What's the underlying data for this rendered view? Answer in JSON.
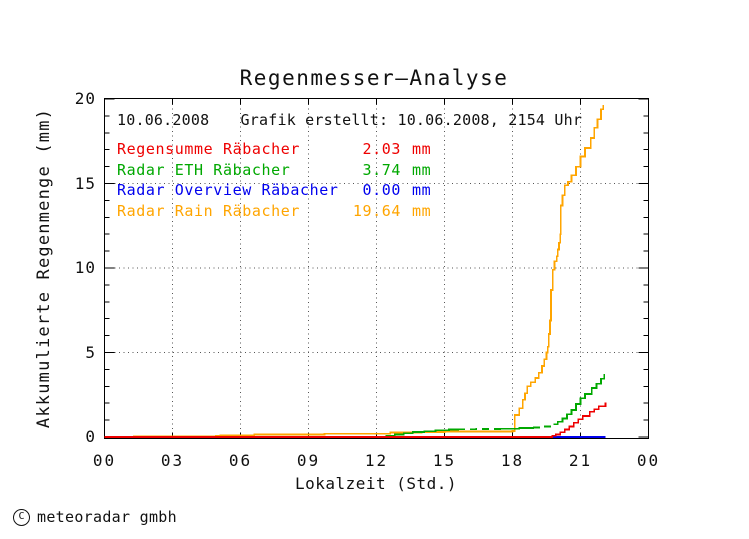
{
  "title": "Regenmesser—Analyse",
  "header": {
    "date": "10.06.2008",
    "created": "Grafik erstellt: 10.06.2008, 2154 Uhr"
  },
  "legend": [
    {
      "name": "Regensumme Räbacher",
      "value": "2.03",
      "unit": "mm",
      "color": "#ee0000"
    },
    {
      "name": "Radar ETH Räbacher",
      "value": "3.74",
      "unit": "mm",
      "color": "#00a800"
    },
    {
      "name": "Radar Overview Räbacher",
      "value": "0.00",
      "unit": "mm",
      "color": "#0000ee"
    },
    {
      "name": "Radar Rain Räbacher",
      "value": "19.64",
      "unit": "mm",
      "color": "#ffa500"
    }
  ],
  "footer": {
    "symbol": "C",
    "text": "meteoradar gmbh"
  },
  "chart_data": {
    "type": "line",
    "title": "Regenmesser—Analyse",
    "xlabel": "Lokalzeit (Std.)",
    "ylabel": "Akkumulierte Regenmenge (mm)",
    "xlim": [
      0,
      24
    ],
    "ylim": [
      0,
      20
    ],
    "x_ticks": {
      "values": [
        0,
        3,
        6,
        9,
        12,
        15,
        18,
        21,
        24
      ],
      "labels": [
        "00",
        "03",
        "06",
        "09",
        "12",
        "15",
        "18",
        "21",
        "00"
      ]
    },
    "y_ticks": {
      "values": [
        0,
        5,
        10,
        15,
        20
      ],
      "labels": [
        "0",
        "5",
        "10",
        "15",
        "20"
      ],
      "minor_step": 1
    },
    "grid": {
      "x_values": [
        3,
        6,
        9,
        12,
        15,
        18,
        21
      ],
      "y_values": [
        5,
        10,
        15
      ],
      "style": "dotted"
    },
    "axis_color": "#000000",
    "grid_color": "#555555",
    "series": [
      {
        "name": "Radar Overview Räbacher",
        "color": "#0000ee",
        "total_mm": 0.0,
        "segments": [
          {
            "dash": false,
            "points": [
              [
                0,
                0
              ],
              [
                22.1,
                0
              ]
            ]
          }
        ]
      },
      {
        "name": "Radar Rain Räbacher",
        "color": "#ffa500",
        "total_mm": 19.64,
        "segments": [
          {
            "dash": false,
            "points": [
              [
                0,
                0
              ],
              [
                1.2,
                0
              ],
              [
                1.3,
                0.05
              ],
              [
                4.9,
                0.07
              ],
              [
                5.1,
                0.1
              ],
              [
                6.6,
                0.15
              ],
              [
                9.7,
                0.2
              ],
              [
                12.6,
                0.27
              ],
              [
                14.0,
                0.3
              ],
              [
                15.0,
                0.33
              ],
              [
                18.0,
                0.36
              ],
              [
                18.1,
                1.3
              ],
              [
                18.3,
                1.7
              ],
              [
                18.45,
                2.2
              ],
              [
                18.55,
                2.6
              ],
              [
                18.65,
                3.0
              ],
              [
                18.8,
                3.25
              ],
              [
                19.0,
                3.5
              ],
              [
                19.15,
                3.8
              ],
              [
                19.3,
                4.2
              ],
              [
                19.4,
                4.6
              ],
              [
                19.5,
                5.0
              ],
              [
                19.55,
                5.35
              ],
              [
                19.6,
                6.1
              ],
              [
                19.65,
                6.9
              ],
              [
                19.7,
                8.7
              ],
              [
                19.78,
                9.9
              ],
              [
                19.85,
                10.4
              ],
              [
                19.95,
                10.7
              ],
              [
                20.0,
                11.1
              ],
              [
                20.05,
                11.5
              ],
              [
                20.1,
                12.0
              ],
              [
                20.13,
                13.7
              ],
              [
                20.2,
                14.3
              ],
              [
                20.3,
                14.9
              ],
              [
                20.45,
                15.1
              ],
              [
                20.6,
                15.5
              ],
              [
                20.8,
                16.0
              ],
              [
                21.0,
                16.6
              ],
              [
                21.2,
                17.1
              ],
              [
                21.45,
                17.7
              ],
              [
                21.6,
                18.3
              ],
              [
                21.75,
                18.8
              ],
              [
                21.9,
                19.4
              ],
              [
                22.0,
                19.64
              ]
            ]
          }
        ]
      },
      {
        "name": "Radar ETH Räbacher",
        "color": "#00a800",
        "total_mm": 3.74,
        "segments": [
          {
            "dash": false,
            "points": [
              [
                12.4,
                0.08
              ],
              [
                12.8,
                0.15
              ],
              [
                13.2,
                0.22
              ],
              [
                13.6,
                0.3
              ],
              [
                14.1,
                0.35
              ],
              [
                14.6,
                0.4
              ],
              [
                15.2,
                0.45
              ],
              [
                15.6,
                0.47
              ]
            ]
          },
          {
            "dash": true,
            "points": [
              [
                15.6,
                0.47
              ],
              [
                16.4,
                0.48
              ],
              [
                17.5,
                0.5
              ]
            ]
          },
          {
            "dash": false,
            "points": [
              [
                17.5,
                0.5
              ],
              [
                18.3,
                0.53
              ],
              [
                18.9,
                0.56
              ]
            ]
          },
          {
            "dash": true,
            "points": [
              [
                18.9,
                0.56
              ],
              [
                19.3,
                0.62
              ],
              [
                19.8,
                0.75
              ]
            ]
          },
          {
            "dash": false,
            "points": [
              [
                19.8,
                0.75
              ],
              [
                20.0,
                0.9
              ],
              [
                20.2,
                1.1
              ],
              [
                20.4,
                1.35
              ],
              [
                20.6,
                1.6
              ],
              [
                20.8,
                1.95
              ],
              [
                21.0,
                2.3
              ],
              [
                21.2,
                2.55
              ],
              [
                21.5,
                2.9
              ],
              [
                21.7,
                3.15
              ],
              [
                21.9,
                3.45
              ],
              [
                22.05,
                3.74
              ]
            ]
          }
        ]
      },
      {
        "name": "Regensumme Räbacher",
        "color": "#ee0000",
        "total_mm": 2.03,
        "segments": [
          {
            "dash": false,
            "points": [
              [
                0,
                0
              ],
              [
                19.6,
                0
              ],
              [
                19.75,
                0.08
              ],
              [
                19.9,
                0.15
              ],
              [
                20.1,
                0.28
              ],
              [
                20.3,
                0.45
              ],
              [
                20.5,
                0.62
              ],
              [
                20.7,
                0.85
              ],
              [
                20.9,
                1.05
              ],
              [
                21.1,
                1.25
              ],
              [
                21.4,
                1.5
              ],
              [
                21.6,
                1.65
              ],
              [
                21.8,
                1.82
              ],
              [
                22.1,
                2.03
              ]
            ]
          }
        ]
      }
    ]
  }
}
